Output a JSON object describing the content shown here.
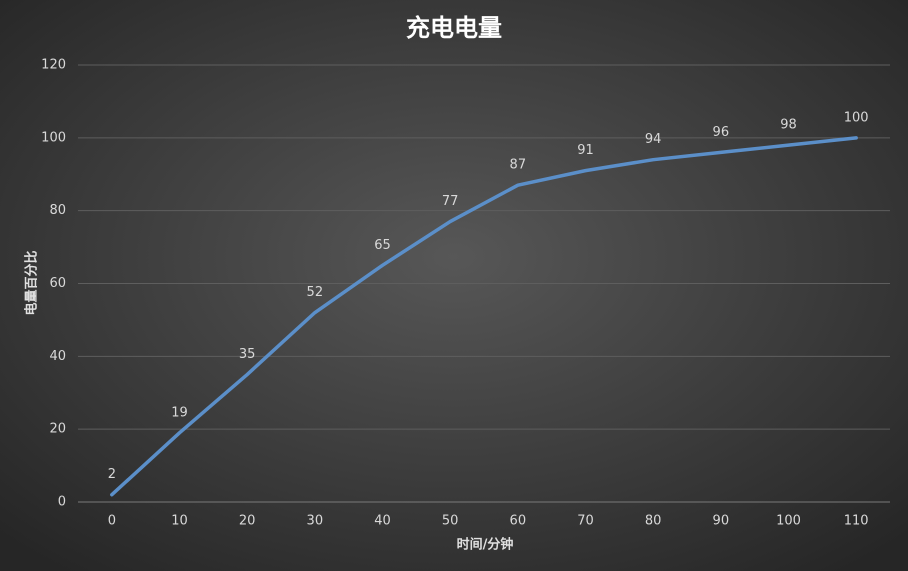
{
  "chart_data": {
    "type": "line",
    "title": "充电电量",
    "y_label": "电量百分比",
    "x_label": "时间/分钟",
    "categories": [
      "0",
      "10",
      "20",
      "30",
      "40",
      "50",
      "60",
      "70",
      "80",
      "90",
      "100",
      "110"
    ],
    "series": [
      {
        "name": "电量百分比",
        "color": "#5b8fc9",
        "values": [
          2,
          19,
          35,
          52,
          65,
          77,
          87,
          91,
          94,
          96,
          98,
          100
        ]
      }
    ],
    "ylim": [
      0,
      120
    ],
    "yticks": [
      0,
      20,
      40,
      60,
      80,
      100,
      120
    ],
    "grid": true,
    "data_labels": true
  }
}
